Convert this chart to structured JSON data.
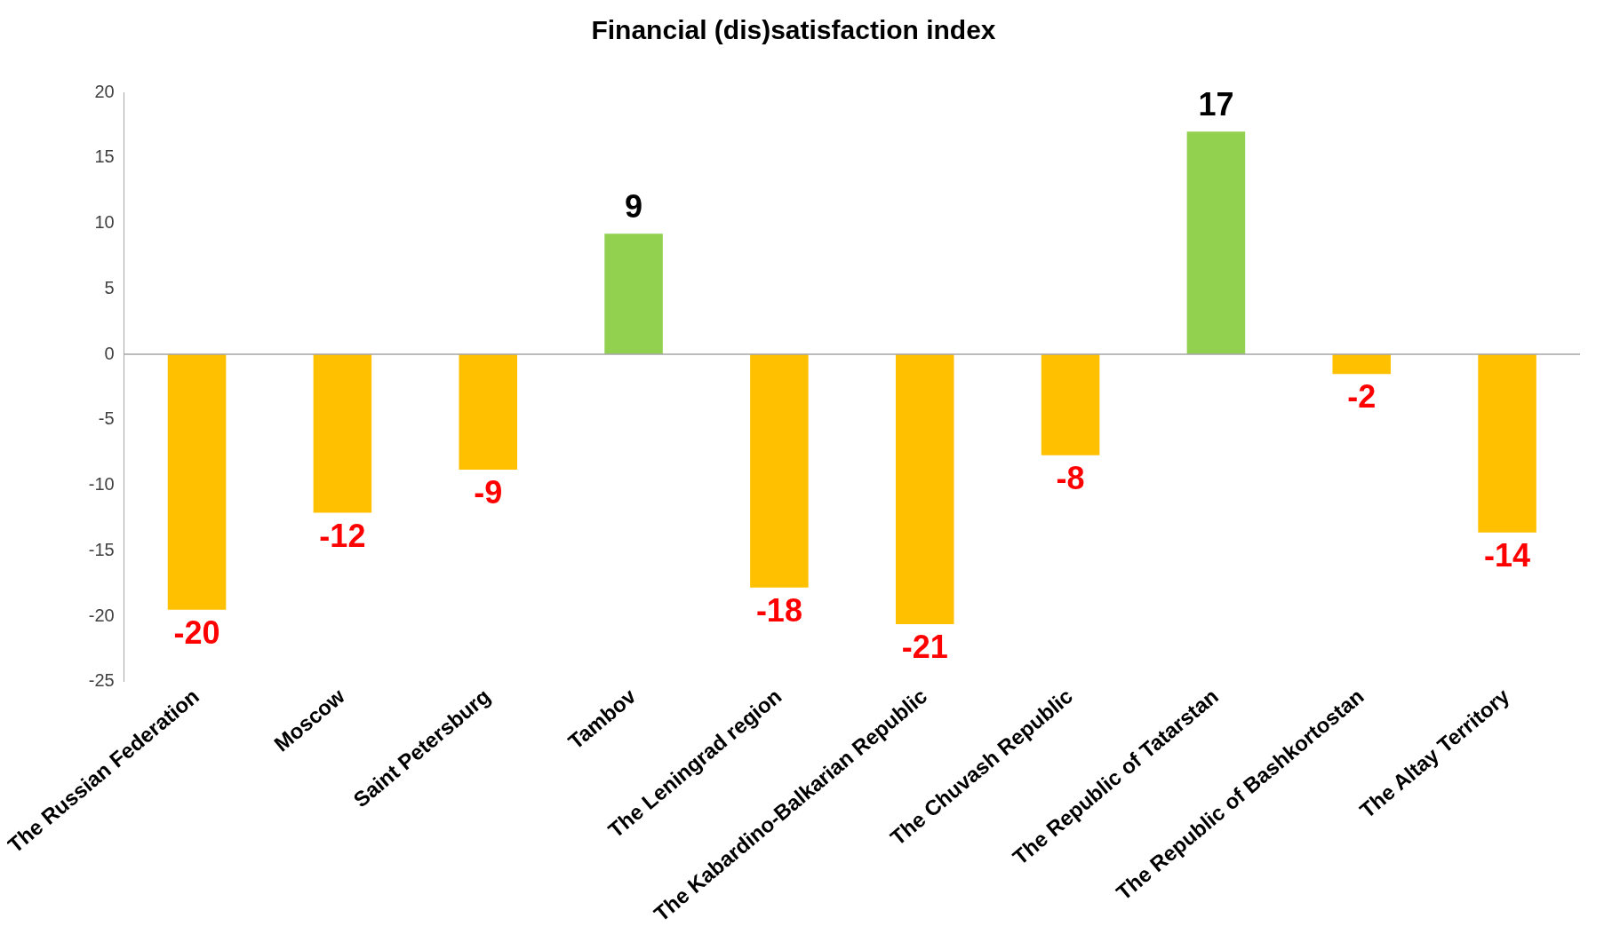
{
  "chart_data": {
    "type": "bar",
    "title": "Financial (dis)satisfaction index",
    "categories": [
      "The Russian Federation",
      "Moscow",
      "Saint Petersburg",
      "Tambov",
      "The Leningrad region",
      "The Kabardino-Balkarian Republic",
      "The Chuvash Republic",
      "The Republic of Tatarstan",
      "The Republic of Bashkortostan",
      "The Altay Territory"
    ],
    "values": [
      -19.5,
      -12.1,
      -8.8,
      9.2,
      -17.8,
      -20.6,
      -7.7,
      17.0,
      -1.5,
      -13.6
    ],
    "value_labels": [
      "-20",
      "-12",
      "-9",
      "9",
      "-18",
      "-21",
      "-8",
      "17",
      "-2",
      "-14"
    ],
    "colors": [
      "#ffc000",
      "#ffc000",
      "#ffc000",
      "#92d050",
      "#ffc000",
      "#ffc000",
      "#ffc000",
      "#92d050",
      "#ffc000",
      "#ffc000"
    ],
    "ylim": [
      -25,
      20
    ],
    "yticks": [
      -25,
      -20,
      -15,
      -10,
      -5,
      0,
      5,
      10,
      15,
      20
    ],
    "grid": false,
    "legend": false,
    "ref_lines": [
      {
        "axis": "y",
        "value": 0,
        "color": "#a6a6a6"
      }
    ]
  }
}
